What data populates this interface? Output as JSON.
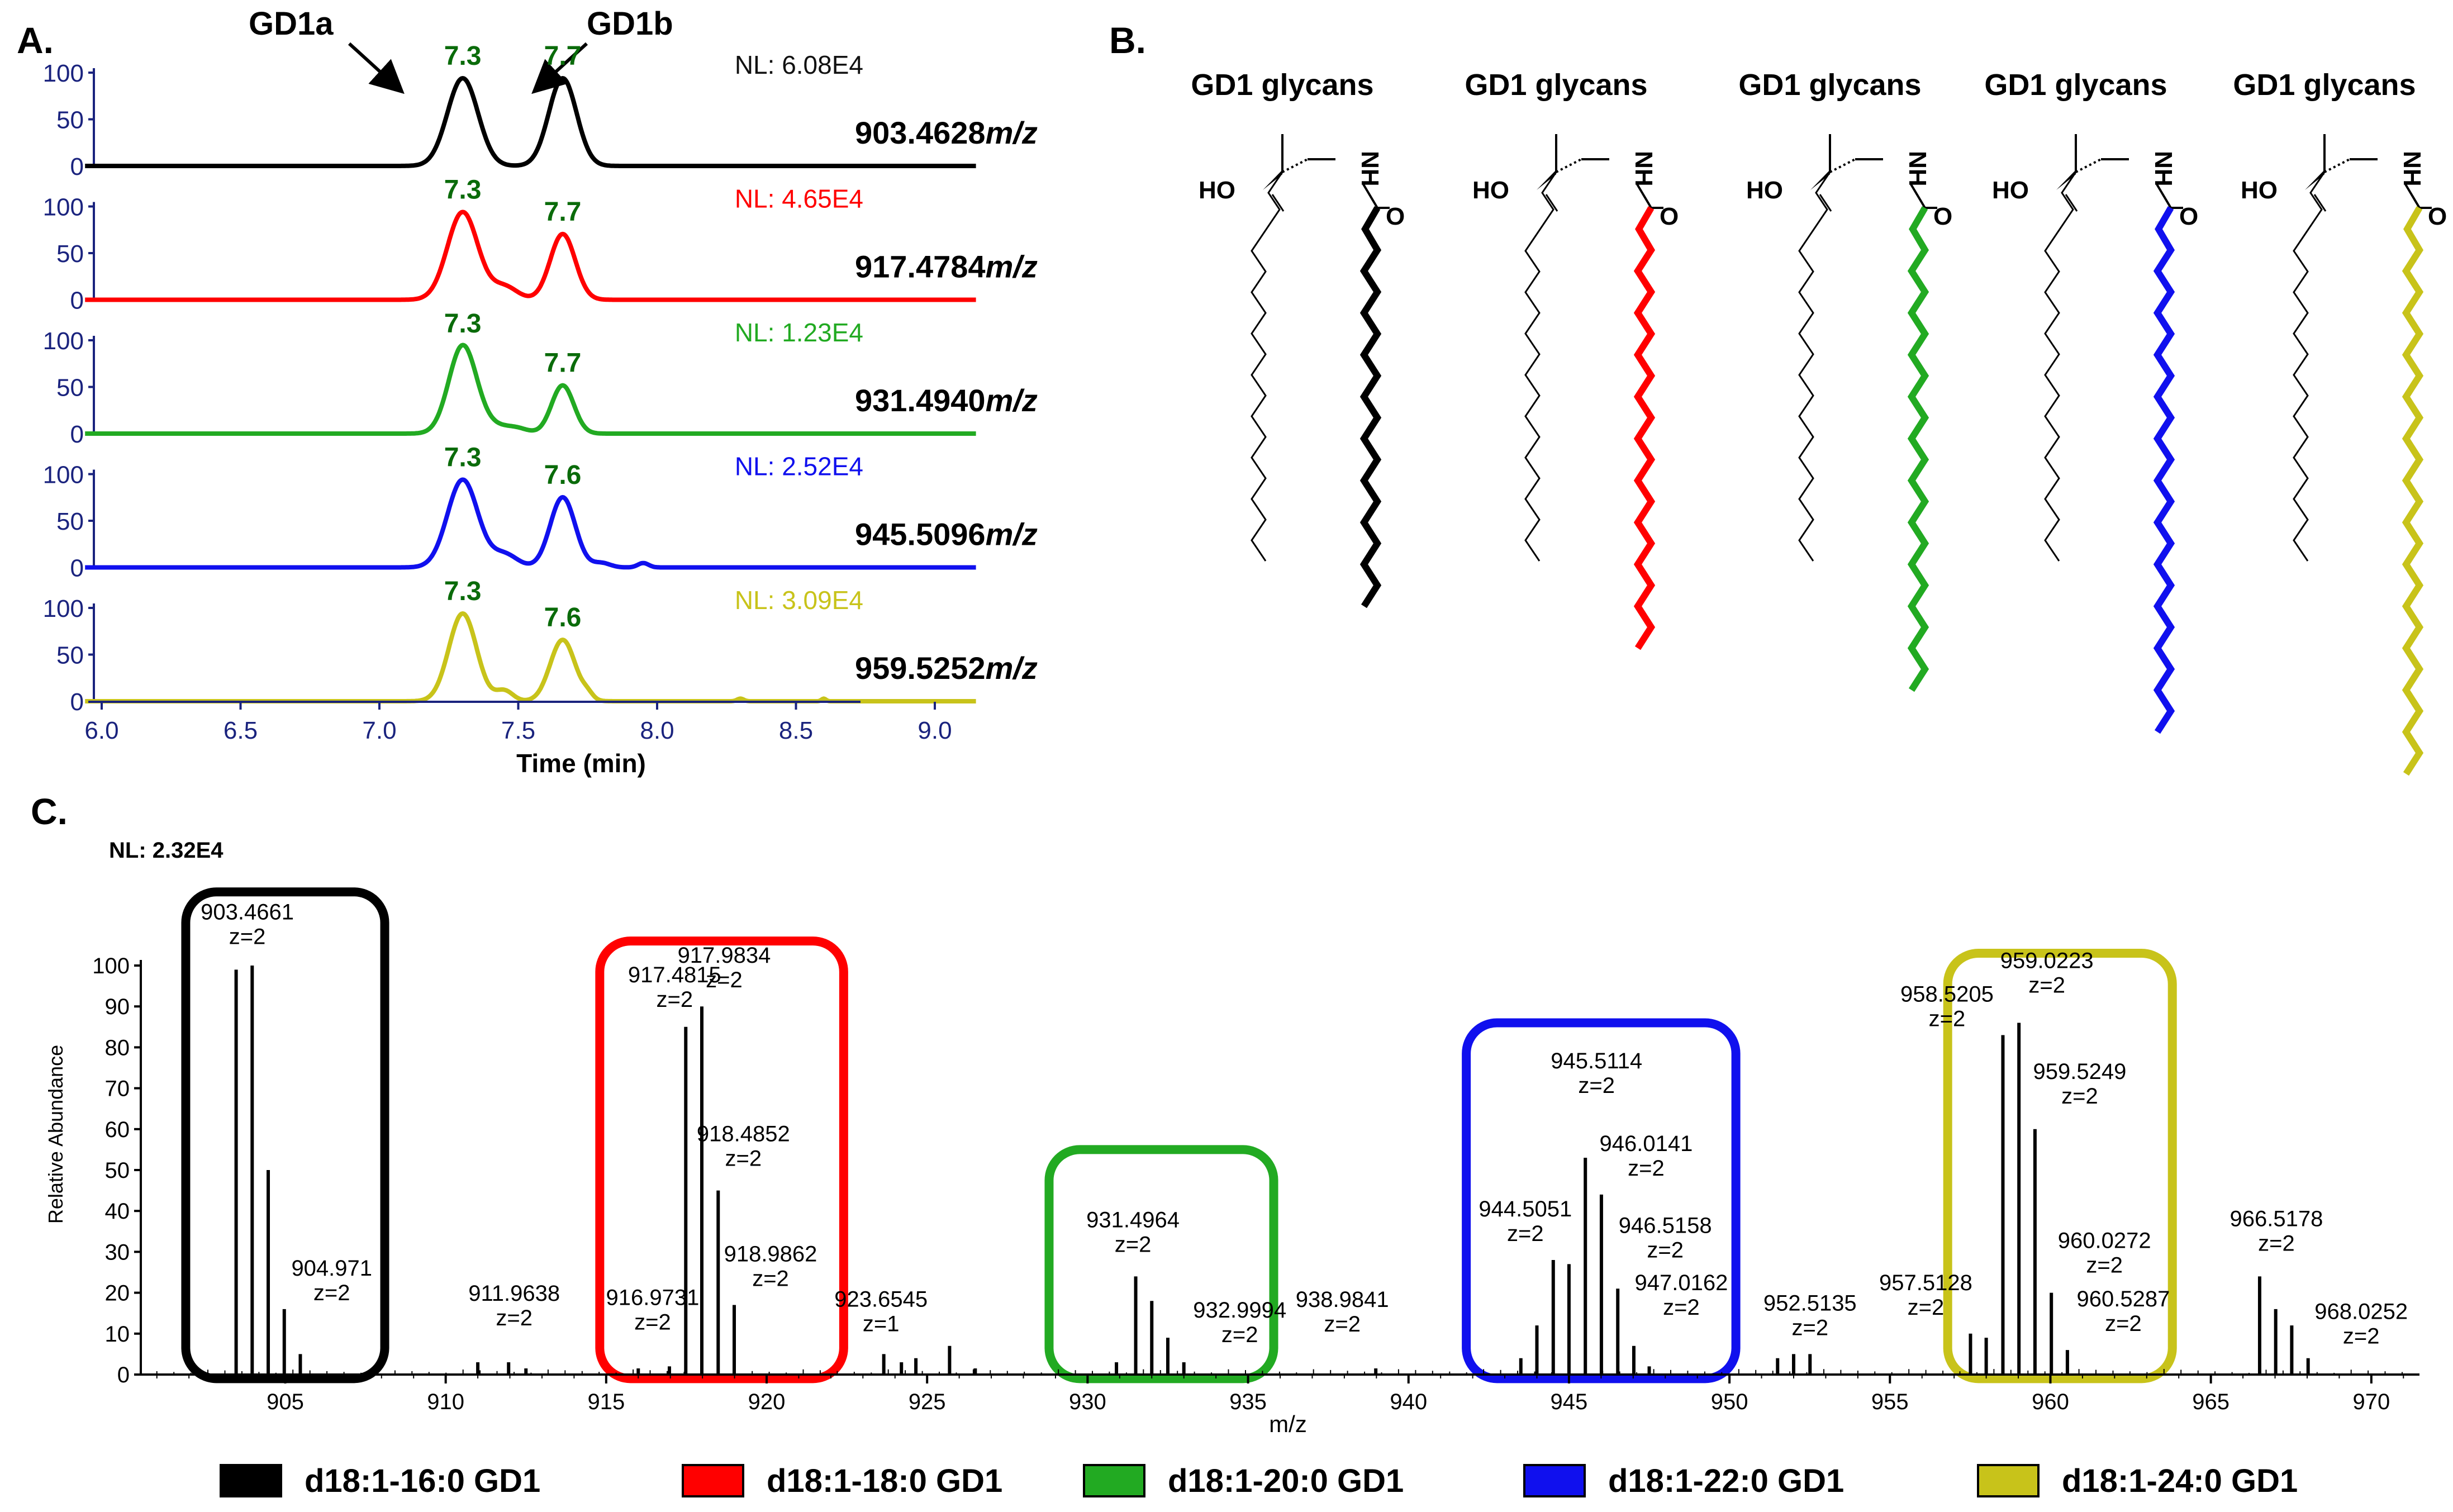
{
  "panel_labels": {
    "a": "A.",
    "b": "B.",
    "c": "C."
  },
  "colors": {
    "c16": "#000000",
    "c18": "#ff0000",
    "c20": "#22aa22",
    "c22": "#1010ee",
    "c24": "#c8c31a",
    "peak_label": "#0a6b0a",
    "axis_blue": "#1a237e"
  },
  "panel_a": {
    "annotations": {
      "gd1a": "GD1a",
      "gd1b": "GD1b"
    },
    "y_ticks": [
      "100",
      "50",
      "0"
    ],
    "x_ticks": [
      "6.0",
      "6.5",
      "7.0",
      "7.5",
      "8.0",
      "8.5",
      "9.0"
    ],
    "xlabel": "Time (min)",
    "traces": [
      {
        "nl": "NL: 6.08E4",
        "mz": "903.4628",
        "mz_unit": "m/z",
        "peak1": "7.3",
        "peak2": "7.7",
        "color": "#000000"
      },
      {
        "nl": "NL: 4.65E4",
        "mz": "917.4784",
        "mz_unit": "m/z",
        "peak1": "7.3",
        "peak2": "7.7",
        "color": "#ff0000"
      },
      {
        "nl": "NL: 1.23E4",
        "mz": "931.4940",
        "mz_unit": "m/z",
        "peak1": "7.3",
        "peak2": "7.7",
        "color": "#22aa22"
      },
      {
        "nl": "NL: 2.52E4",
        "mz": "945.5096",
        "mz_unit": "m/z",
        "peak1": "7.3",
        "peak2": "7.6",
        "color": "#1010ee"
      },
      {
        "nl": "NL: 3.09E4",
        "mz": "959.5252",
        "mz_unit": "m/z",
        "peak1": "7.3",
        "peak2": "7.6",
        "color": "#c8c31a"
      }
    ]
  },
  "panel_b": {
    "structures": [
      {
        "title": "GD1 glycans",
        "ho": "HO",
        "nh": "NH",
        "o": "O",
        "color": "#000000",
        "chain": 16
      },
      {
        "title": "GD1 glycans",
        "ho": "HO",
        "nh": "NH",
        "o": "O",
        "color": "#ff0000",
        "chain": 18
      },
      {
        "title": "GD1 glycans",
        "ho": "HO",
        "nh": "NH",
        "o": "O",
        "color": "#22aa22",
        "chain": 20
      },
      {
        "title": "GD1 glycans",
        "ho": "HO",
        "nh": "NH",
        "o": "O",
        "color": "#1010ee",
        "chain": 22
      },
      {
        "title": "GD1 glycans",
        "ho": "HO",
        "nh": "NH",
        "o": "O",
        "color": "#c8c31a",
        "chain": 24
      }
    ]
  },
  "chart_data": {
    "type": "bar",
    "nl": "NL: 2.32E4",
    "xlabel": "m/z",
    "ylabel": "Relative Abundance",
    "xlim": [
      900.5,
      971.5
    ],
    "ylim": [
      0,
      100
    ],
    "x_ticks": [
      "905",
      "910",
      "915",
      "920",
      "925",
      "930",
      "935",
      "940",
      "945",
      "950",
      "955",
      "960",
      "965",
      "970"
    ],
    "y_ticks": [
      "0",
      "10",
      "20",
      "30",
      "40",
      "50",
      "60",
      "70",
      "80",
      "90",
      "100"
    ],
    "peaks": [
      {
        "x": 903.47,
        "y": 99
      },
      {
        "x": 903.97,
        "y": 100
      },
      {
        "x": 904.47,
        "y": 50
      },
      {
        "x": 904.97,
        "y": 16
      },
      {
        "x": 905.47,
        "y": 5
      },
      {
        "x": 911.0,
        "y": 3
      },
      {
        "x": 911.96,
        "y": 3
      },
      {
        "x": 912.5,
        "y": 1.5
      },
      {
        "x": 916.0,
        "y": 1.5
      },
      {
        "x": 916.97,
        "y": 2
      },
      {
        "x": 917.48,
        "y": 85
      },
      {
        "x": 917.98,
        "y": 90
      },
      {
        "x": 918.49,
        "y": 45
      },
      {
        "x": 918.99,
        "y": 17
      },
      {
        "x": 923.65,
        "y": 5
      },
      {
        "x": 924.2,
        "y": 3
      },
      {
        "x": 924.65,
        "y": 4
      },
      {
        "x": 925.7,
        "y": 7
      },
      {
        "x": 926.5,
        "y": 1.5
      },
      {
        "x": 930.9,
        "y": 3
      },
      {
        "x": 931.5,
        "y": 24
      },
      {
        "x": 932.0,
        "y": 18
      },
      {
        "x": 932.5,
        "y": 9
      },
      {
        "x": 933.0,
        "y": 3
      },
      {
        "x": 938.98,
        "y": 1.5
      },
      {
        "x": 943.5,
        "y": 4
      },
      {
        "x": 944.0,
        "y": 12
      },
      {
        "x": 944.51,
        "y": 28
      },
      {
        "x": 945.0,
        "y": 27
      },
      {
        "x": 945.51,
        "y": 53
      },
      {
        "x": 946.01,
        "y": 44
      },
      {
        "x": 946.52,
        "y": 21
      },
      {
        "x": 947.02,
        "y": 7
      },
      {
        "x": 947.5,
        "y": 2
      },
      {
        "x": 951.5,
        "y": 4
      },
      {
        "x": 952.0,
        "y": 5
      },
      {
        "x": 952.51,
        "y": 5
      },
      {
        "x": 957.51,
        "y": 10
      },
      {
        "x": 958.0,
        "y": 9
      },
      {
        "x": 958.52,
        "y": 83
      },
      {
        "x": 959.02,
        "y": 86
      },
      {
        "x": 959.52,
        "y": 60
      },
      {
        "x": 960.03,
        "y": 20
      },
      {
        "x": 960.53,
        "y": 6
      },
      {
        "x": 966.52,
        "y": 24
      },
      {
        "x": 967.02,
        "y": 16
      },
      {
        "x": 967.52,
        "y": 12
      },
      {
        "x": 968.03,
        "y": 4
      }
    ],
    "peak_labels": [
      {
        "mz": "903.4661",
        "z": "z=2",
        "x": 903.47,
        "y": 99
      },
      {
        "mz": "904.971",
        "z": "z=2",
        "x": 904.97,
        "y": 16
      },
      {
        "mz": "911.9638",
        "z": "z=2",
        "x": 911.96,
        "y": 3
      },
      {
        "mz": "916.9731",
        "z": "z=2",
        "x": 916.97,
        "y": 2
      },
      {
        "mz": "917.4815",
        "z": "z=2",
        "x": 917.48,
        "y": 85
      },
      {
        "mz": "917.9834",
        "z": "z=2",
        "x": 917.98,
        "y": 90
      },
      {
        "mz": "918.4852",
        "z": "z=2",
        "x": 918.49,
        "y": 45
      },
      {
        "mz": "918.9862",
        "z": "z=2",
        "x": 918.99,
        "y": 17
      },
      {
        "mz": "923.6545",
        "z": "z=1",
        "x": 923.65,
        "y": 5
      },
      {
        "mz": "931.4964",
        "z": "z=2",
        "x": 931.5,
        "y": 24
      },
      {
        "mz": "932.9994",
        "z": "z=2",
        "x": 933.0,
        "y": 3
      },
      {
        "mz": "938.9841",
        "z": "z=2",
        "x": 938.98,
        "y": 1.5
      },
      {
        "mz": "944.5051",
        "z": "z=2",
        "x": 944.51,
        "y": 28
      },
      {
        "mz": "945.5114",
        "z": "z=2",
        "x": 945.51,
        "y": 53
      },
      {
        "mz": "946.0141",
        "z": "z=2",
        "x": 946.01,
        "y": 44
      },
      {
        "mz": "946.5158",
        "z": "z=2",
        "x": 946.52,
        "y": 21
      },
      {
        "mz": "947.0162",
        "z": "z=2",
        "x": 947.02,
        "y": 7
      },
      {
        "mz": "952.5135",
        "z": "z=2",
        "x": 952.51,
        "y": 5
      },
      {
        "mz": "957.5128",
        "z": "z=2",
        "x": 957.51,
        "y": 10
      },
      {
        "mz": "958.5205",
        "z": "z=2",
        "x": 958.52,
        "y": 83
      },
      {
        "mz": "959.0223",
        "z": "z=2",
        "x": 959.02,
        "y": 86
      },
      {
        "mz": "959.5249",
        "z": "z=2",
        "x": 959.52,
        "y": 60
      },
      {
        "mz": "960.0272",
        "z": "z=2",
        "x": 960.03,
        "y": 20
      },
      {
        "mz": "960.5287",
        "z": "z=2",
        "x": 960.53,
        "y": 6
      },
      {
        "mz": "966.5178",
        "z": "z=2",
        "x": 966.52,
        "y": 24
      },
      {
        "mz": "968.0252",
        "z": "z=2",
        "x": 968.03,
        "y": 4
      }
    ],
    "boxes": [
      {
        "color": "#000000",
        "x0": 901.9,
        "x1": 908.1,
        "y0": -1,
        "y1": 118
      },
      {
        "color": "#ff0000",
        "x0": 914.8,
        "x1": 922.4,
        "y0": -1,
        "y1": 106
      },
      {
        "color": "#22aa22",
        "x0": 928.8,
        "x1": 935.8,
        "y0": -1,
        "y1": 55
      },
      {
        "color": "#1010ee",
        "x0": 941.8,
        "x1": 950.2,
        "y0": -1,
        "y1": 86
      },
      {
        "color": "#c8c31a",
        "x0": 956.8,
        "x1": 963.8,
        "y0": -1,
        "y1": 103
      }
    ],
    "legend": [
      {
        "label": "d18:1-16:0 GD1",
        "color": "#000000"
      },
      {
        "label": "d18:1-18:0 GD1",
        "color": "#ff0000"
      },
      {
        "label": "d18:1-20:0 GD1",
        "color": "#22aa22"
      },
      {
        "label": "d18:1-22:0 GD1",
        "color": "#1010ee"
      },
      {
        "label": "d18:1-24:0 GD1",
        "color": "#c8c31a"
      }
    ]
  }
}
